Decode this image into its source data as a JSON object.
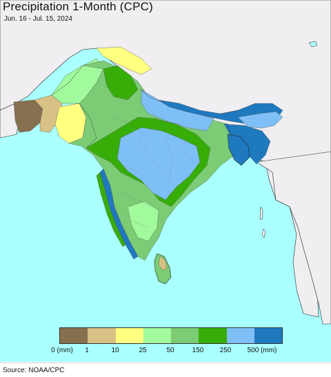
{
  "title": "Precipitation 1-Month (CPC)",
  "subtitle": "Jun. 16 - Jul. 15, 2024",
  "source": "Source: NOAA/CPC",
  "colors": {
    "ocean": "#aaffff",
    "land_outside": "#f0eef1",
    "class_0": "#87704f",
    "class_1": "#d8c184",
    "class_10": "#ffff80",
    "class_25": "#a1fa9c",
    "class_50": "#7bcc74",
    "class_150": "#37ad08",
    "class_250": "#7fbff7",
    "class_500": "#1f79bf"
  },
  "legend": {
    "swatches": [
      "#87704f",
      "#d8c184",
      "#ffff80",
      "#a1fa9c",
      "#7bcc74",
      "#37ad08",
      "#7fbff7",
      "#1f79bf"
    ],
    "labels": [
      "0 (mm)",
      "1",
      "10",
      "25",
      "50",
      "150",
      "250",
      "500 (mm)"
    ]
  }
}
